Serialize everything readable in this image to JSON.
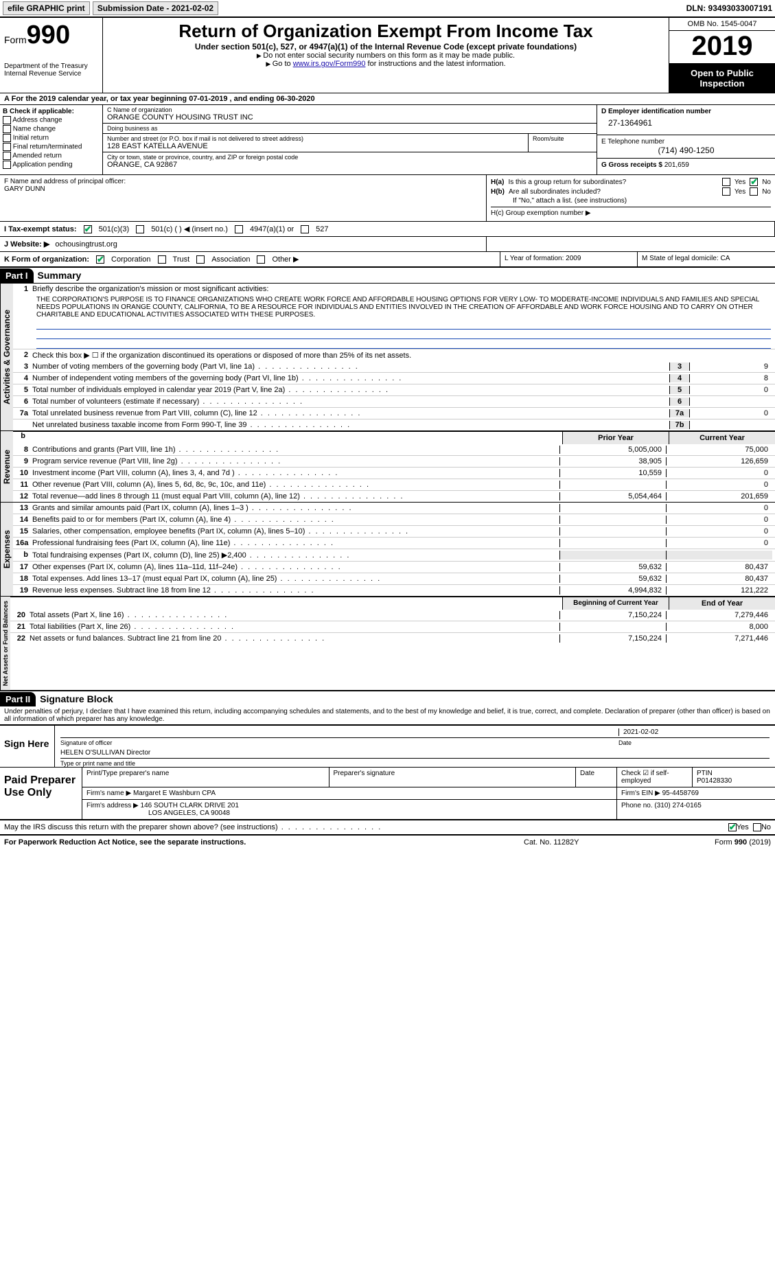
{
  "topbar": {
    "efile_label": "efile GRAPHIC print",
    "submission_label": "Submission Date - 2021-02-02",
    "dln": "DLN: 93493033007191"
  },
  "header": {
    "form_word": "Form",
    "form_num": "990",
    "dept": "Department of the Treasury\nInternal Revenue Service",
    "title": "Return of Organization Exempt From Income Tax",
    "subtitle": "Under section 501(c), 527, or 4947(a)(1) of the Internal Revenue Code (except private foundations)",
    "note1": "Do not enter social security numbers on this form as it may be made public.",
    "note2_a": "Go to ",
    "note2_link": "www.irs.gov/Form990",
    "note2_b": " for instructions and the latest information.",
    "omb": "OMB No. 1545-0047",
    "year": "2019",
    "open": "Open to Public Inspection"
  },
  "line_a": "For the 2019 calendar year, or tax year beginning 07-01-2019   , and ending 06-30-2020",
  "box_b": {
    "hdr": "B Check if applicable:",
    "opts": [
      "Address change",
      "Name change",
      "Initial return",
      "Final return/terminated",
      "Amended return",
      "Application pending"
    ]
  },
  "box_c": {
    "name_label": "C Name of organization",
    "name": "ORANGE COUNTY HOUSING TRUST INC",
    "dba_label": "Doing business as",
    "dba": "",
    "street_label": "Number and street (or P.O. box if mail is not delivered to street address)",
    "street": "128 EAST KATELLA AVENUE",
    "room_label": "Room/suite",
    "room": "",
    "city_label": "City or town, state or province, country, and ZIP or foreign postal code",
    "city": "ORANGE, CA  92867"
  },
  "box_d": {
    "hdr": "D Employer identification number",
    "val": "27-1364961"
  },
  "box_e": {
    "hdr": "E Telephone number",
    "val": "(714) 490-1250"
  },
  "box_g": {
    "hdr": "G Gross receipts $",
    "val": "201,659"
  },
  "box_f": {
    "hdr": "F  Name and address of principal officer:",
    "val": "GARY DUNN"
  },
  "box_h": {
    "a": "H(a)  Is this a group return for subordinates?",
    "b": "H(b)  Are all subordinates included?",
    "b_note": "If \"No,\" attach a list. (see instructions)",
    "c": "H(c)  Group exemption number ▶",
    "yes": "Yes",
    "no": "No"
  },
  "row_i": {
    "label": "I  Tax-exempt status:",
    "o1": "501(c)(3)",
    "o2": "501(c) (  ) ◀ (insert no.)",
    "o3": "4947(a)(1) or",
    "o4": "527"
  },
  "row_j": {
    "label": "J  Website: ▶",
    "val": "ochousingtrust.org"
  },
  "row_k": {
    "label": "K Form of organization:",
    "opts": [
      "Corporation",
      "Trust",
      "Association",
      "Other ▶"
    ],
    "l": "L Year of formation: 2009",
    "m": "M State of legal domicile: CA"
  },
  "part1": {
    "num": "Part I",
    "title": "Summary"
  },
  "gov": {
    "tab": "Activities & Governance",
    "l1": "Briefly describe the organization's mission or most significant activities:",
    "mission": "THE CORPORATION'S PURPOSE IS TO FINANCE ORGANIZATIONS WHO CREATE WORK FORCE AND AFFORDABLE HOUSING OPTIONS FOR VERY LOW- TO MODERATE-INCOME INDIVIDUALS AND FAMILIES AND SPECIAL NEEDS POPULATIONS IN ORANGE COUNTY, CALIFORNIA, TO BE A RESOURCE FOR INDIVIDUALS AND ENTITIES INVOLVED IN THE CREATION OF AFFORDABLE AND WORK FORCE HOUSING AND TO CARRY ON OTHER CHARITABLE AND EDUCATIONAL ACTIVITIES ASSOCIATED WITH THESE PURPOSES.",
    "l2": "Check this box ▶ ☐ if the organization discontinued its operations or disposed of more than 25% of its net assets.",
    "rows": [
      {
        "n": "3",
        "t": "Number of voting members of the governing body (Part VI, line 1a)",
        "b": "3",
        "v": "9"
      },
      {
        "n": "4",
        "t": "Number of independent voting members of the governing body (Part VI, line 1b)",
        "b": "4",
        "v": "8"
      },
      {
        "n": "5",
        "t": "Total number of individuals employed in calendar year 2019 (Part V, line 2a)",
        "b": "5",
        "v": "0"
      },
      {
        "n": "6",
        "t": "Total number of volunteers (estimate if necessary)",
        "b": "6",
        "v": ""
      },
      {
        "n": "7a",
        "t": "Total unrelated business revenue from Part VIII, column (C), line 12",
        "b": "7a",
        "v": "0"
      },
      {
        "n": "",
        "t": "Net unrelated business taxable income from Form 990-T, line 39",
        "b": "7b",
        "v": ""
      }
    ]
  },
  "colhdr": {
    "b": "b",
    "py": "Prior Year",
    "cy": "Current Year"
  },
  "rev": {
    "tab": "Revenue",
    "rows": [
      {
        "n": "8",
        "t": "Contributions and grants (Part VIII, line 1h)",
        "py": "5,005,000",
        "cy": "75,000"
      },
      {
        "n": "9",
        "t": "Program service revenue (Part VIII, line 2g)",
        "py": "38,905",
        "cy": "126,659"
      },
      {
        "n": "10",
        "t": "Investment income (Part VIII, column (A), lines 3, 4, and 7d )",
        "py": "10,559",
        "cy": "0"
      },
      {
        "n": "11",
        "t": "Other revenue (Part VIII, column (A), lines 5, 6d, 8c, 9c, 10c, and 11e)",
        "py": "",
        "cy": "0"
      },
      {
        "n": "12",
        "t": "Total revenue—add lines 8 through 11 (must equal Part VIII, column (A), line 12)",
        "py": "5,054,464",
        "cy": "201,659"
      }
    ]
  },
  "exp": {
    "tab": "Expenses",
    "rows": [
      {
        "n": "13",
        "t": "Grants and similar amounts paid (Part IX, column (A), lines 1–3 )",
        "py": "",
        "cy": "0"
      },
      {
        "n": "14",
        "t": "Benefits paid to or for members (Part IX, column (A), line 4)",
        "py": "",
        "cy": "0"
      },
      {
        "n": "15",
        "t": "Salaries, other compensation, employee benefits (Part IX, column (A), lines 5–10)",
        "py": "",
        "cy": "0"
      },
      {
        "n": "16a",
        "t": "Professional fundraising fees (Part IX, column (A), line 11e)",
        "py": "",
        "cy": "0"
      },
      {
        "n": "b",
        "t": "Total fundraising expenses (Part IX, column (D), line 25) ▶2,400",
        "py": "",
        "cy": "",
        "shade": true
      },
      {
        "n": "17",
        "t": "Other expenses (Part IX, column (A), lines 11a–11d, 11f–24e)",
        "py": "59,632",
        "cy": "80,437"
      },
      {
        "n": "18",
        "t": "Total expenses. Add lines 13–17 (must equal Part IX, column (A), line 25)",
        "py": "59,632",
        "cy": "80,437"
      },
      {
        "n": "19",
        "t": "Revenue less expenses. Subtract line 18 from line 12",
        "py": "4,994,832",
        "cy": "121,222"
      }
    ]
  },
  "colhdr2": {
    "py": "Beginning of Current Year",
    "cy": "End of Year"
  },
  "net": {
    "tab": "Net Assets or Fund Balances",
    "rows": [
      {
        "n": "20",
        "t": "Total assets (Part X, line 16)",
        "py": "7,150,224",
        "cy": "7,279,446"
      },
      {
        "n": "21",
        "t": "Total liabilities (Part X, line 26)",
        "py": "",
        "cy": "8,000"
      },
      {
        "n": "22",
        "t": "Net assets or fund balances. Subtract line 21 from line 20",
        "py": "7,150,224",
        "cy": "7,271,446"
      }
    ]
  },
  "part2": {
    "num": "Part II",
    "title": "Signature Block"
  },
  "decl": "Under penalties of perjury, I declare that I have examined this return, including accompanying schedules and statements, and to the best of my knowledge and belief, it is true, correct, and complete. Declaration of preparer (other than officer) is based on all information of which preparer has any knowledge.",
  "sign": {
    "here": "Sign Here",
    "sig_label": "Signature of officer",
    "date_label": "Date",
    "date": "2021-02-02",
    "name": "HELEN O'SULLIVAN  Director",
    "name_label": "Type or print name and title"
  },
  "prep": {
    "label": "Paid Preparer Use Only",
    "r1": {
      "a": "Print/Type preparer's name",
      "b": "Preparer's signature",
      "c": "Date",
      "d": "Check ☑ if self-employed",
      "e": "PTIN",
      "ev": "P01428330"
    },
    "r2": {
      "a": "Firm's name    ▶",
      "av": "Margaret E Washburn CPA",
      "b": "Firm's EIN ▶",
      "bv": "95-4458769"
    },
    "r3": {
      "a": "Firm's address ▶",
      "av": "146 SOUTH CLARK DRIVE 201",
      "av2": "LOS ANGELES, CA  90048",
      "b": "Phone no.",
      "bv": "(310) 274-0165"
    }
  },
  "may": {
    "t": "May the IRS discuss this return with the preparer shown above? (see instructions)",
    "yes": "Yes",
    "no": "No"
  },
  "footer": {
    "l": "For Paperwork Reduction Act Notice, see the separate instructions.",
    "m": "Cat. No. 11282Y",
    "r": "Form 990 (2019)"
  },
  "colors": {
    "link": "#1a0dab",
    "rule": "#1a4bb5",
    "shade": "#e8e8e8",
    "check": "#0a5"
  }
}
